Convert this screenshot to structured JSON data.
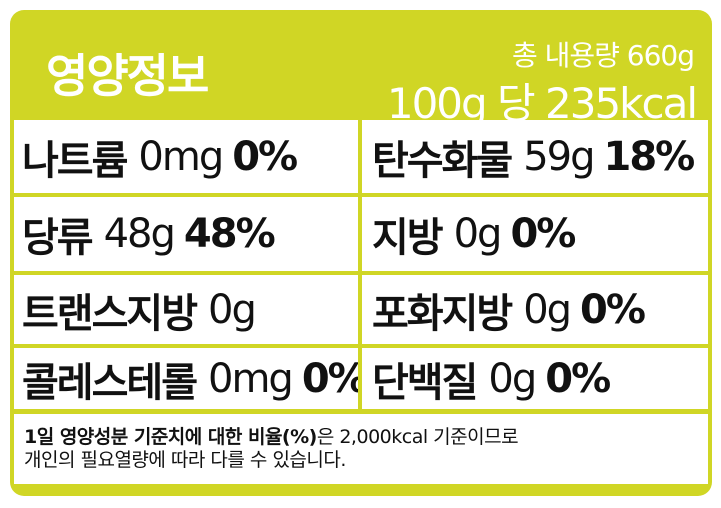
{
  "header": {
    "title": "영양정보",
    "total_content": "총 내용량 660g",
    "per_serving": "100g 당 235kcal"
  },
  "nutrients": [
    {
      "name": "나트륨",
      "amount": "0mg",
      "percent": "0%"
    },
    {
      "name": "탄수화물",
      "amount": "59g",
      "percent": "18%"
    },
    {
      "name": "당류",
      "amount": "48g",
      "percent": "48%"
    },
    {
      "name": "지방",
      "amount": "0g",
      "percent": "0%"
    },
    {
      "name": "트랜스지방",
      "amount": "0g",
      "percent": ""
    },
    {
      "name": "포화지방",
      "amount": "0g",
      "percent": "0%"
    },
    {
      "name": "콜레스테롤",
      "amount": "0mg",
      "percent": "0%"
    },
    {
      "name": "단백질",
      "amount": "0g",
      "percent": "0%"
    }
  ],
  "footer": {
    "bold": "1일 영양성분 기준치에 대한 비율(%)",
    "line1_rest": "은 2,000kcal 기준이므로",
    "line2": "개인의 필요열량에 따라 다를 수 있습니다."
  },
  "colors": {
    "accent": "#d0d625",
    "text": "#111111",
    "panel": "#ffffff"
  }
}
